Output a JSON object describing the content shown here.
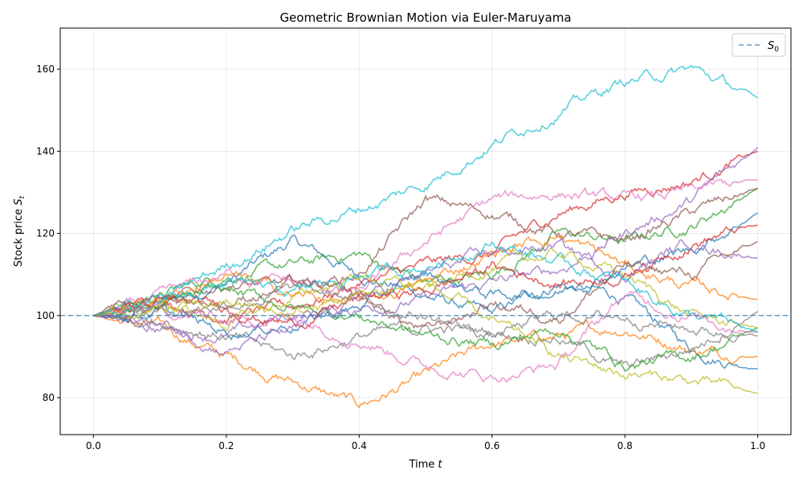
{
  "chart_data": {
    "type": "line",
    "title": "Geometric Brownian Motion via Euler-Maruyama",
    "xlabel": "Time t",
    "ylabel": "Stock price S_t",
    "xlim": [
      -0.05,
      1.05
    ],
    "ylim": [
      71,
      170
    ],
    "xticks": [
      0.0,
      0.2,
      0.4,
      0.6,
      0.8,
      1.0
    ],
    "xtick_labels": [
      "0.0",
      "0.2",
      "0.4",
      "0.6",
      "0.8",
      "1.0"
    ],
    "yticks": [
      80,
      100,
      120,
      140,
      160
    ],
    "ytick_labels": [
      "80",
      "100",
      "120",
      "140",
      "160"
    ],
    "grid": true,
    "legend": {
      "placement": "top-right",
      "entries": [
        "S0"
      ]
    },
    "reference_line": {
      "name": "S0",
      "y": 100,
      "style": "dashed",
      "color": "#1f77b4"
    },
    "x": [
      0,
      0.1,
      0.2,
      0.3,
      0.4,
      0.5,
      0.6,
      0.7,
      0.8,
      0.9,
      1.0
    ],
    "series": [
      {
        "color": "#1f77b4",
        "values": [
          100,
          103,
          108,
          118,
          110,
          105,
          100,
          108,
          104,
          92,
          87
        ]
      },
      {
        "color": "#ff7f0e",
        "values": [
          100,
          97,
          90,
          84,
          78,
          85,
          93,
          95,
          97,
          92,
          90
        ]
      },
      {
        "color": "#2ca02c",
        "values": [
          100,
          105,
          110,
          112,
          115,
          108,
          110,
          120,
          118,
          122,
          131
        ]
      },
      {
        "color": "#d62728",
        "values": [
          100,
          104,
          100,
          102,
          108,
          112,
          115,
          125,
          130,
          133,
          140
        ]
      },
      {
        "color": "#9467bd",
        "values": [
          100,
          97,
          95,
          100,
          102,
          104,
          108,
          111,
          120,
          128,
          141
        ]
      },
      {
        "color": "#8c564b",
        "values": [
          100,
          102,
          108,
          107,
          110,
          128,
          125,
          120,
          118,
          125,
          131
        ]
      },
      {
        "color": "#e377c2",
        "values": [
          100,
          104,
          110,
          108,
          105,
          118,
          128,
          130,
          128,
          130,
          133
        ]
      },
      {
        "color": "#7f7f7f",
        "values": [
          100,
          99,
          95,
          90,
          95,
          97,
          96,
          95,
          87,
          92,
          101
        ]
      },
      {
        "color": "#bcbd22",
        "values": [
          100,
          103,
          98,
          104,
          110,
          106,
          112,
          115,
          110,
          100,
          97
        ]
      },
      {
        "color": "#17becf",
        "values": [
          100,
          103,
          112,
          121,
          126,
          132,
          142,
          150,
          157,
          160,
          153
        ]
      },
      {
        "color": "#1f77b4",
        "values": [
          100,
          101,
          96,
          98,
          102,
          110,
          105,
          106,
          112,
          116,
          125
        ]
      },
      {
        "color": "#ff7f0e",
        "values": [
          100,
          104,
          110,
          105,
          103,
          108,
          115,
          120,
          112,
          107,
          104
        ]
      },
      {
        "color": "#2ca02c",
        "values": [
          100,
          102,
          106,
          102,
          100,
          95,
          93,
          97,
          88,
          90,
          97
        ]
      },
      {
        "color": "#d62728",
        "values": [
          100,
          103,
          102,
          98,
          104,
          106,
          112,
          108,
          110,
          118,
          122
        ]
      },
      {
        "color": "#9467bd",
        "values": [
          100,
          98,
          92,
          96,
          104,
          110,
          115,
          117,
          110,
          118,
          114
        ]
      },
      {
        "color": "#8c564b",
        "values": [
          100,
          105,
          103,
          108,
          104,
          96,
          103,
          100,
          112,
          110,
          118
        ]
      },
      {
        "color": "#e377c2",
        "values": [
          100,
          101,
          99,
          100,
          95,
          88,
          85,
          88,
          105,
          100,
          96
        ]
      },
      {
        "color": "#7f7f7f",
        "values": [
          100,
          101,
          103,
          106,
          104,
          100,
          95,
          100,
          100,
          97,
          95
        ]
      },
      {
        "color": "#bcbd22",
        "values": [
          100,
          101,
          103,
          100,
          105,
          108,
          98,
          90,
          86,
          84,
          81
        ]
      },
      {
        "color": "#17becf",
        "values": [
          100,
          103,
          108,
          105,
          110,
          112,
          118,
          113,
          108,
          100,
          96
        ]
      }
    ]
  }
}
